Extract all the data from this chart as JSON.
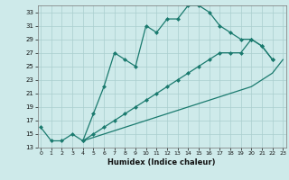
{
  "xlabel": "Humidex (Indice chaleur)",
  "bg_color": "#ceeaea",
  "grid_color": "#aacece",
  "line_color": "#1a7a6e",
  "line1_x": [
    0,
    1,
    2,
    3,
    4,
    5,
    6,
    7,
    8,
    9,
    10,
    11,
    12,
    13,
    14,
    15,
    16,
    17,
    18,
    19,
    20,
    21,
    22
  ],
  "line1_y": [
    16,
    14,
    14,
    15,
    14,
    18,
    22,
    27,
    26,
    25,
    31,
    30,
    32,
    32,
    34,
    34,
    33,
    31,
    30,
    29,
    29,
    28,
    26
  ],
  "line2_x": [
    4,
    5,
    6,
    7,
    8,
    9,
    10,
    11,
    12,
    13,
    14,
    15,
    16,
    17,
    18,
    19,
    20,
    21,
    22
  ],
  "line2_y": [
    14,
    15,
    16,
    17,
    18,
    19,
    20,
    21,
    22,
    23,
    24,
    25,
    26,
    27,
    27,
    27,
    29,
    28,
    26
  ],
  "line3_x": [
    4,
    5,
    6,
    7,
    8,
    9,
    10,
    11,
    12,
    13,
    14,
    15,
    16,
    17,
    18,
    19,
    20,
    21,
    22,
    23
  ],
  "line3_y": [
    14,
    14.5,
    15,
    15.5,
    16,
    16.5,
    17,
    17.5,
    18,
    18.5,
    19,
    19.5,
    20,
    20.5,
    21,
    21.5,
    22,
    23,
    24,
    26
  ],
  "xlim": [
    0,
    23
  ],
  "ylim": [
    13,
    34
  ],
  "xticks": [
    0,
    1,
    2,
    3,
    4,
    5,
    6,
    7,
    8,
    9,
    10,
    11,
    12,
    13,
    14,
    15,
    16,
    17,
    18,
    19,
    20,
    21,
    22,
    23
  ],
  "yticks": [
    13,
    15,
    17,
    19,
    21,
    23,
    25,
    27,
    29,
    31,
    33
  ]
}
